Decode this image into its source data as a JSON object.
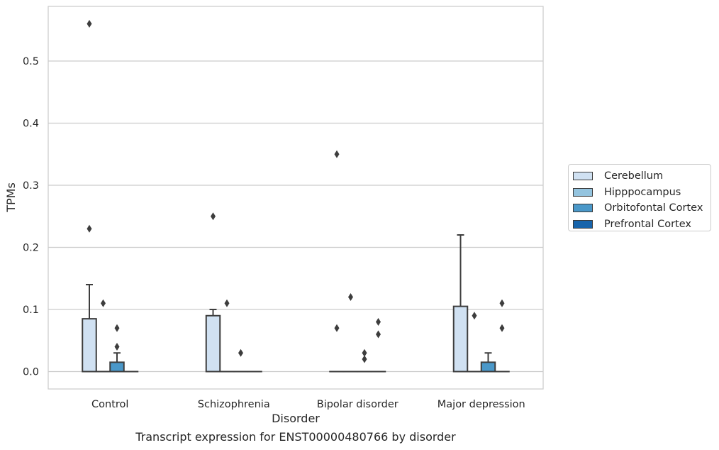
{
  "caption": "Transcript expression for ENST00000480766 by disorder",
  "chart_data": {
    "type": "box",
    "xlabel": "Disorder",
    "ylabel": "TPMs",
    "categories": [
      "Control",
      "Schizophrenia",
      "Bipolar disorder",
      "Major depression"
    ],
    "ylim": [
      -0.028,
      0.588
    ],
    "yticks": [
      "0.0",
      "0.1",
      "0.2",
      "0.3",
      "0.4",
      "0.5"
    ],
    "grid": true,
    "legend_position": "right",
    "series": [
      {
        "name": "Cerebellum",
        "color": "#d0e1f2",
        "boxes": [
          {
            "q1": 0.0,
            "median": 0.0,
            "q3": 0.085,
            "whisker_low": 0.0,
            "whisker_high": 0.14,
            "outliers": [
              0.23,
              0.56
            ]
          },
          {
            "q1": 0.0,
            "median": 0.0,
            "q3": 0.09,
            "whisker_low": 0.0,
            "whisker_high": 0.1,
            "outliers": [
              0.25
            ]
          },
          {
            "q1": 0.0,
            "median": 0.0,
            "q3": 0.0,
            "whisker_low": 0.0,
            "whisker_high": 0.0,
            "outliers": [
              0.07,
              0.35
            ]
          },
          {
            "q1": 0.0,
            "median": 0.0,
            "q3": 0.105,
            "whisker_low": 0.0,
            "whisker_high": 0.22,
            "outliers": []
          }
        ]
      },
      {
        "name": "Hipppocampus",
        "color": "#94c4df",
        "boxes": [
          {
            "q1": 0.0,
            "median": 0.0,
            "q3": 0.0,
            "whisker_low": 0.0,
            "whisker_high": 0.0,
            "outliers": [
              0.11
            ]
          },
          {
            "q1": 0.0,
            "median": 0.0,
            "q3": 0.0,
            "whisker_low": 0.0,
            "whisker_high": 0.0,
            "outliers": [
              0.11
            ]
          },
          {
            "q1": 0.0,
            "median": 0.0,
            "q3": 0.0,
            "whisker_low": 0.0,
            "whisker_high": 0.0,
            "outliers": [
              0.12
            ]
          },
          {
            "q1": 0.0,
            "median": 0.0,
            "q3": 0.0,
            "whisker_low": 0.0,
            "whisker_high": 0.0,
            "outliers": [
              0.09
            ]
          }
        ]
      },
      {
        "name": "Orbitofontal Cortex",
        "color": "#4a98c9",
        "boxes": [
          {
            "q1": 0.0,
            "median": 0.0,
            "q3": 0.015,
            "whisker_low": 0.0,
            "whisker_high": 0.03,
            "outliers": [
              0.04,
              0.07
            ]
          },
          {
            "q1": 0.0,
            "median": 0.0,
            "q3": 0.0,
            "whisker_low": 0.0,
            "whisker_high": 0.0,
            "outliers": [
              0.03
            ]
          },
          {
            "q1": 0.0,
            "median": 0.0,
            "q3": 0.0,
            "whisker_low": 0.0,
            "whisker_high": 0.0,
            "outliers": [
              0.02,
              0.03
            ]
          },
          {
            "q1": 0.0,
            "median": 0.0,
            "q3": 0.015,
            "whisker_low": 0.0,
            "whisker_high": 0.03,
            "outliers": []
          }
        ]
      },
      {
        "name": "Prefrontal Cortex",
        "color": "#1764ab",
        "boxes": [
          {
            "q1": 0.0,
            "median": 0.0,
            "q3": 0.0,
            "whisker_low": 0.0,
            "whisker_high": 0.0,
            "outliers": []
          },
          {
            "q1": 0.0,
            "median": 0.0,
            "q3": 0.0,
            "whisker_low": 0.0,
            "whisker_high": 0.0,
            "outliers": []
          },
          {
            "q1": 0.0,
            "median": 0.0,
            "q3": 0.0,
            "whisker_low": 0.0,
            "whisker_high": 0.0,
            "outliers": [
              0.06,
              0.08
            ]
          },
          {
            "q1": 0.0,
            "median": 0.0,
            "q3": 0.0,
            "whisker_low": 0.0,
            "whisker_high": 0.0,
            "outliers": [
              0.07,
              0.11
            ]
          }
        ]
      }
    ]
  }
}
